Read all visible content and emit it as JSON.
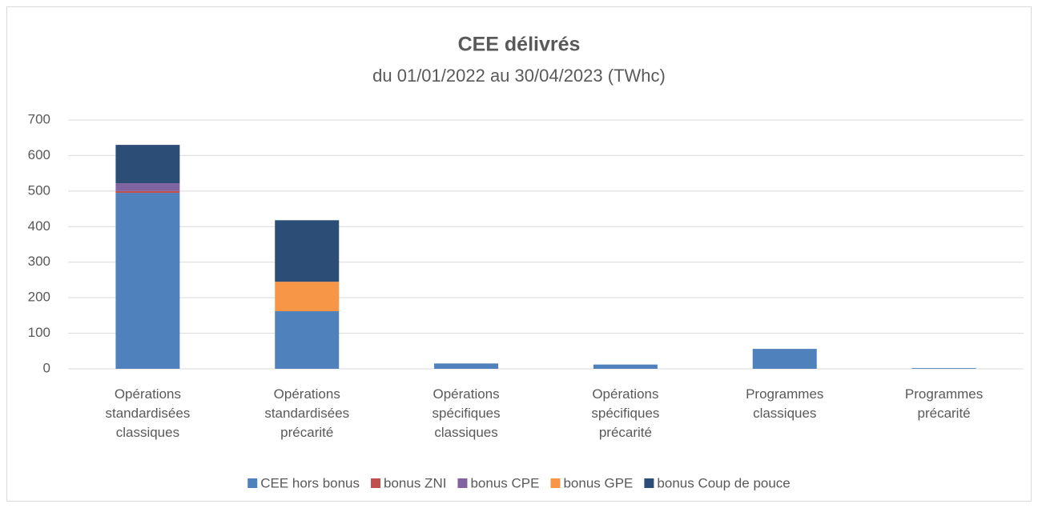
{
  "chart_data": {
    "type": "stacked_bar",
    "title": "CEE délivrés",
    "subtitle": "du 01/01/2022 au 30/04/2023 (TWhc)",
    "categories": [
      "Opérations standardisées classiques",
      "Opérations standardisées précarité",
      "Opérations spécifiques classiques",
      "Opérations spécifiques précarité",
      "Programmes classiques",
      "Programmes précarité"
    ],
    "series": [
      {
        "name": "CEE hors bonus",
        "color": "#4f81bd",
        "values": [
          495,
          162,
          15,
          12,
          56,
          2
        ]
      },
      {
        "name": "bonus ZNI",
        "color": "#c0504d",
        "values": [
          5,
          0,
          0,
          0,
          0,
          0
        ]
      },
      {
        "name": "bonus CPE",
        "color": "#8064a2",
        "values": [
          22,
          0,
          0,
          0,
          0,
          0
        ]
      },
      {
        "name": "bonus GPE",
        "color": "#f79646",
        "values": [
          0,
          83,
          0,
          0,
          0,
          0
        ]
      },
      {
        "name": "bonus Coup de pouce",
        "color": "#2c4d75",
        "values": [
          108,
          173,
          0,
          0,
          0,
          0
        ]
      }
    ],
    "ylim": [
      0,
      700
    ],
    "yticks": [
      0,
      100,
      200,
      300,
      400,
      500,
      600,
      700
    ],
    "grid": true,
    "legend": "bottom"
  }
}
